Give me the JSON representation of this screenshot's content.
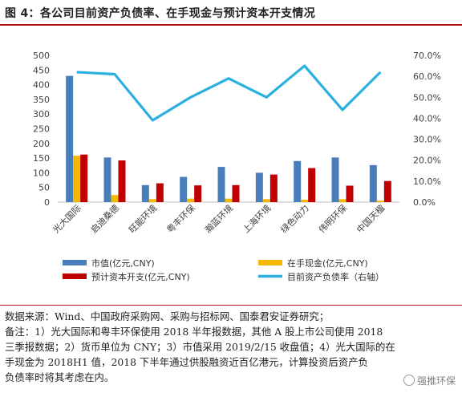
{
  "figure_title": "图 4：各公司目前资产负债率、在手现金与预计资本开支情况",
  "chart_data": {
    "type": "bar",
    "categories": [
      "光大国际",
      "启迪桑德",
      "旺能环境",
      "粤丰环保",
      "瀚蓝环境",
      "上海环境",
      "绿色动力",
      "伟明环保",
      "中国天楹"
    ],
    "series": [
      {
        "name": "市值(亿元,CNY)",
        "axis": "left",
        "kind": "bar",
        "color": "#4a7ebb",
        "values": [
          430,
          152,
          58,
          86,
          120,
          100,
          140,
          152,
          126
        ]
      },
      {
        "name": "在手现金(亿元,CNY)",
        "axis": "left",
        "kind": "bar",
        "color": "#f5b800",
        "values": [
          158,
          24,
          10,
          12,
          12,
          10,
          8,
          10,
          5
        ]
      },
      {
        "name": "预计资本开支(亿元,CNY)",
        "axis": "left",
        "kind": "bar",
        "color": "#c00000",
        "values": [
          162,
          142,
          64,
          57,
          58,
          94,
          116,
          56,
          72
        ]
      },
      {
        "name": "目前资产负债率（右轴）",
        "axis": "right",
        "kind": "line",
        "color": "#2ab0e0",
        "values": [
          0.62,
          0.61,
          0.39,
          0.5,
          0.59,
          0.5,
          0.65,
          0.44,
          0.62
        ]
      }
    ],
    "left_axis": {
      "min": 0,
      "max": 500,
      "ticks": [
        "0",
        "50",
        "100",
        "150",
        "200",
        "250",
        "300",
        "350",
        "400",
        "450",
        "500"
      ]
    },
    "right_axis": {
      "min": 0,
      "max": 0.7,
      "ticks": [
        "0.0%",
        "10.0%",
        "20.0%",
        "30.0%",
        "40.0%",
        "50.0%",
        "60.0%",
        "70.0%"
      ]
    },
    "legend": [
      {
        "label": "市值(亿元,CNY)",
        "kind": "bar",
        "color": "#4a7ebb"
      },
      {
        "label": "在手现金(亿元,CNY)",
        "kind": "bar",
        "color": "#f5b800"
      },
      {
        "label": "预计资本开支(亿元,CNY)",
        "kind": "bar",
        "color": "#c00000"
      },
      {
        "label": "目前资产负债率（右轴）",
        "kind": "line",
        "color": "#2ab0e0"
      }
    ],
    "legend_position": "bottom",
    "grid": false
  },
  "notes": [
    "数据来源：Wind、中国政府采购网、采购与招标网、国泰君安证券研究；",
    "备注：1）光大国际和粤丰环保使用 2018 半年报数据，其他 A 股上市公司使用 2018",
    "三季报数据；2）货币单位为 CNY；3）市值采用 2019/2/15 收盘值；4）光大国际的在",
    "手现金为 2018H1 值，2018 下半年通过供股融资近百亿港元，计算投资后资产负",
    "负债率时将其考虑在内。"
  ],
  "watermark": "强推环保"
}
